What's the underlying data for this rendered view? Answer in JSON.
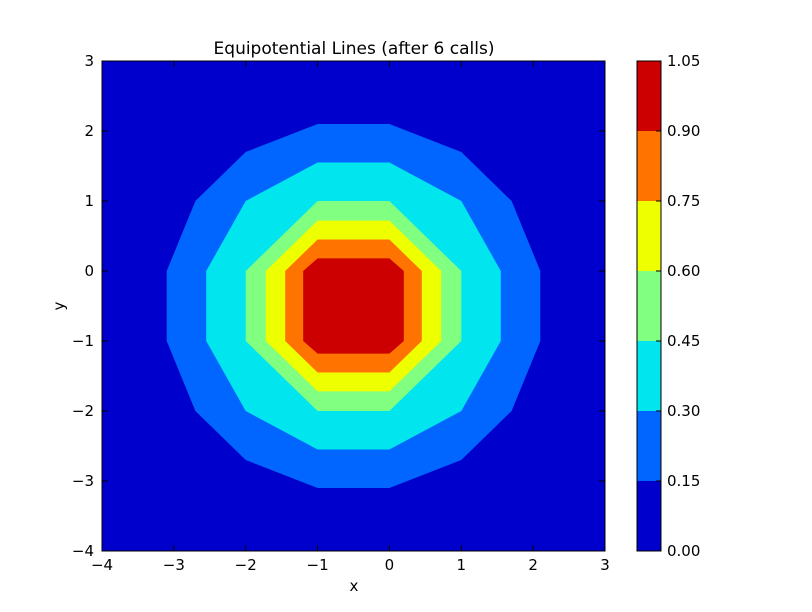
{
  "chart_data": {
    "type": "contourf",
    "title": "Equipotential Lines (after 6 calls)",
    "xlabel": "x",
    "ylabel": "y",
    "xlim": [
      -4,
      3
    ],
    "ylim": [
      -4,
      3
    ],
    "xticks": [
      "−4",
      "−3",
      "−2",
      "−1",
      "0",
      "1",
      "2",
      "3"
    ],
    "yticks": [
      "−4",
      "−3",
      "−2",
      "−1",
      "0",
      "1",
      "2",
      "3"
    ],
    "center": [
      -0.5,
      -0.5
    ],
    "levels": [
      {
        "lower": 0.0,
        "upper": 0.15,
        "color": "#0000cc"
      },
      {
        "lower": 0.15,
        "upper": 0.3,
        "color": "#0066ff"
      },
      {
        "lower": 0.3,
        "upper": 0.45,
        "color": "#00e5ee"
      },
      {
        "lower": 0.45,
        "upper": 0.6,
        "color": "#80ff80"
      },
      {
        "lower": 0.6,
        "upper": 0.75,
        "color": "#eeff00"
      },
      {
        "lower": 0.75,
        "upper": 0.9,
        "color": "#ff7300"
      },
      {
        "lower": 0.9,
        "upper": 1.05,
        "color": "#cc0000"
      }
    ],
    "contours": [
      {
        "level": 0.15,
        "points": [
          [
            -1,
            2.1
          ],
          [
            0,
            2.1
          ],
          [
            1,
            1.7
          ],
          [
            1.7,
            1
          ],
          [
            2.1,
            0
          ],
          [
            2.1,
            -1
          ],
          [
            1.7,
            -2
          ],
          [
            1,
            -2.7
          ],
          [
            0,
            -3.1
          ],
          [
            -1,
            -3.1
          ],
          [
            -2,
            -2.7
          ],
          [
            -2.7,
            -2
          ],
          [
            -3.1,
            -1
          ],
          [
            -3.1,
            0
          ],
          [
            -2.7,
            1
          ],
          [
            -2,
            1.7
          ]
        ]
      },
      {
        "level": 0.3,
        "points": [
          [
            -1,
            1.55
          ],
          [
            0,
            1.55
          ],
          [
            1,
            1
          ],
          [
            1.55,
            0
          ],
          [
            1.55,
            -1
          ],
          [
            1,
            -2
          ],
          [
            0,
            -2.55
          ],
          [
            -1,
            -2.55
          ],
          [
            -2,
            -2
          ],
          [
            -2.55,
            -1
          ],
          [
            -2.55,
            0
          ],
          [
            -2,
            1
          ]
        ]
      },
      {
        "level": 0.45,
        "points": [
          [
            -1,
            1
          ],
          [
            0,
            1
          ],
          [
            1,
            0
          ],
          [
            1,
            -1
          ],
          [
            0,
            -2
          ],
          [
            -1,
            -2
          ],
          [
            -2,
            -1
          ],
          [
            -2,
            0
          ]
        ]
      },
      {
        "level": 0.6,
        "points": [
          [
            -1,
            0.72
          ],
          [
            0,
            0.72
          ],
          [
            0.72,
            0
          ],
          [
            0.72,
            -1
          ],
          [
            0,
            -1.72
          ],
          [
            -1,
            -1.72
          ],
          [
            -1.72,
            -1
          ],
          [
            -1.72,
            0
          ]
        ]
      },
      {
        "level": 0.75,
        "points": [
          [
            -1,
            0.45
          ],
          [
            0,
            0.45
          ],
          [
            0.45,
            0
          ],
          [
            0.45,
            -1
          ],
          [
            0,
            -1.45
          ],
          [
            -1,
            -1.45
          ],
          [
            -1.45,
            -1
          ],
          [
            -1.45,
            0
          ]
        ]
      },
      {
        "level": 0.9,
        "points": [
          [
            -1,
            0.18
          ],
          [
            0,
            0.18
          ],
          [
            0.2,
            0
          ],
          [
            0.2,
            -1
          ],
          [
            0,
            -1.18
          ],
          [
            -1,
            -1.18
          ],
          [
            -1.2,
            -1
          ],
          [
            -1.2,
            0
          ]
        ]
      }
    ],
    "colorbar": {
      "ticks": [
        "0.00",
        "0.15",
        "0.30",
        "0.45",
        "0.60",
        "0.75",
        "0.90",
        "1.05"
      ],
      "range": [
        0.0,
        1.05
      ]
    }
  }
}
